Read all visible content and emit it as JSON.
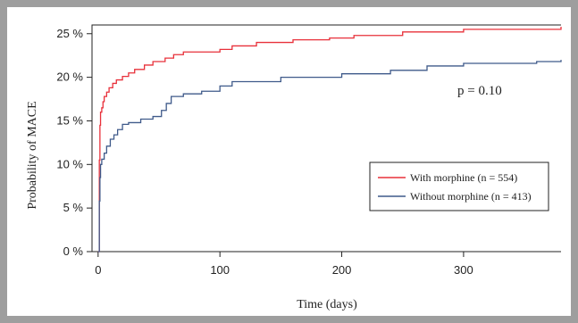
{
  "chart_data": {
    "type": "line",
    "xlabel": "Time (days)",
    "ylabel": "Probability of MACE",
    "xlim": [
      -5,
      380
    ],
    "ylim": [
      0,
      26
    ],
    "x_ticks": [
      0,
      100,
      200,
      300
    ],
    "x_tick_labels": [
      "0",
      "100",
      "200",
      "300"
    ],
    "y_ticks": [
      0,
      5,
      10,
      15,
      20,
      25
    ],
    "y_tick_labels": [
      "0 %",
      "5 %",
      "10 %",
      "15 %",
      "20 %",
      "25 %"
    ],
    "annotation": "p = 0.10",
    "legend_position": "bottom-right",
    "series": [
      {
        "name": "With morphine (n = 554)",
        "color": "#e8303a",
        "x": [
          0,
          1,
          1.5,
          2,
          3,
          4,
          5,
          7,
          9,
          12,
          15,
          20,
          25,
          30,
          38,
          45,
          55,
          62,
          70,
          100,
          110,
          130,
          160,
          190,
          210,
          250,
          300,
          380
        ],
        "y": [
          0,
          10.5,
          14.5,
          16.0,
          16.5,
          17.2,
          17.8,
          18.3,
          18.8,
          19.3,
          19.7,
          20.1,
          20.5,
          20.9,
          21.4,
          21.8,
          22.2,
          22.6,
          22.9,
          23.2,
          23.6,
          24.0,
          24.3,
          24.5,
          24.8,
          25.2,
          25.5,
          25.8
        ]
      },
      {
        "name": "Without morphine (n = 413)",
        "color": "#3f5a8a",
        "x": [
          0,
          1,
          1.5,
          2,
          3,
          5,
          7,
          10,
          13,
          16,
          20,
          25,
          35,
          45,
          52,
          56,
          60,
          70,
          85,
          100,
          110,
          150,
          200,
          240,
          270,
          300,
          360,
          380
        ],
        "y": [
          0,
          5.8,
          8.5,
          10.0,
          10.6,
          11.3,
          12.1,
          12.9,
          13.4,
          14.0,
          14.6,
          14.8,
          15.2,
          15.5,
          16.2,
          17.0,
          17.8,
          18.1,
          18.4,
          19.0,
          19.5,
          20.0,
          20.4,
          20.8,
          21.3,
          21.6,
          21.8,
          22.0
        ]
      }
    ]
  }
}
